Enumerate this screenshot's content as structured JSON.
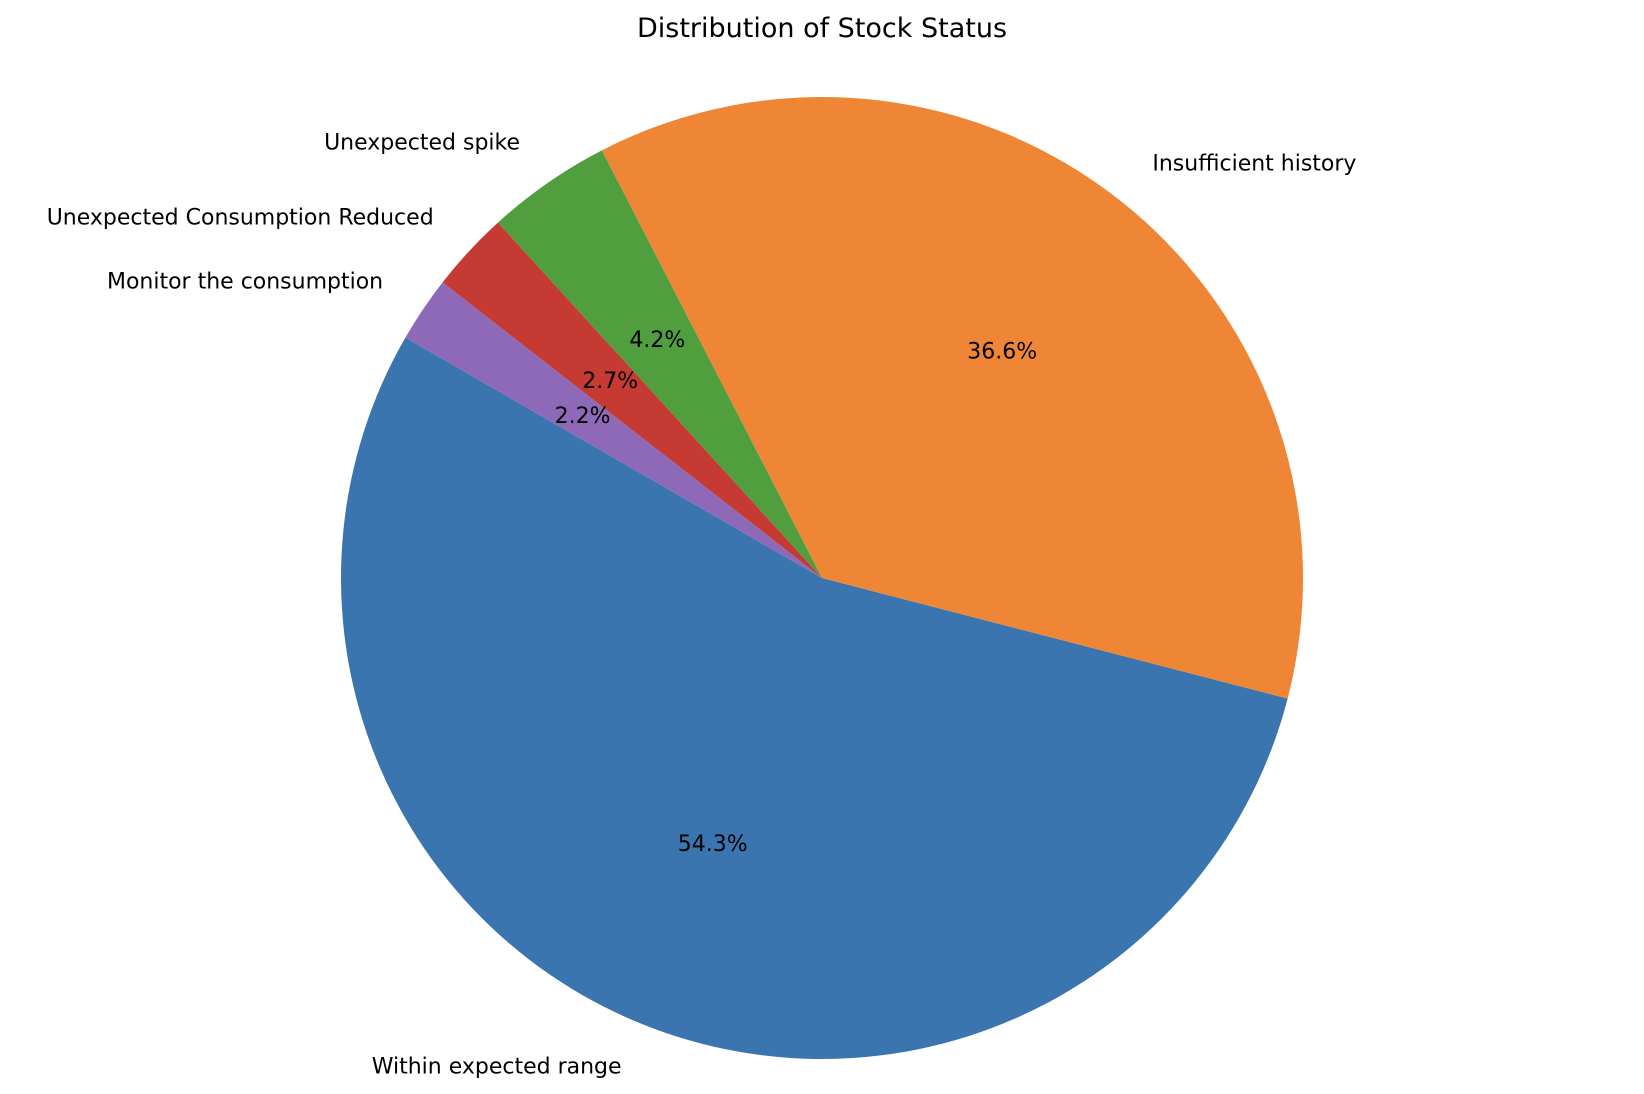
{
  "chart_data": {
    "type": "pie",
    "title": "Distribution of Stock Status",
    "labels": [
      "Within expected range",
      "Insufficient history",
      "Unexpected spike",
      "Unexpected Consumption Reduced",
      "Monitor the consumption"
    ],
    "values": [
      54.3,
      36.6,
      4.2,
      2.7,
      2.2
    ],
    "percent_labels": [
      "54.3%",
      "36.6%",
      "4.2%",
      "2.7%",
      "2.2%"
    ],
    "colors": [
      "#3b75af",
      "#ef8636",
      "#519e3e",
      "#c53a32",
      "#8d69b8"
    ],
    "start_angle_deg": 150,
    "direction": "counterclockwise",
    "legend": "none"
  }
}
